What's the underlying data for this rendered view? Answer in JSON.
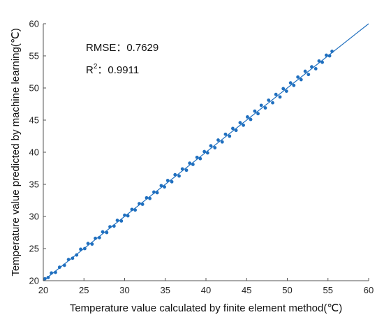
{
  "chart_data": {
    "type": "scatter",
    "title": "",
    "xlabel": "Temperature value calculated by finite element method(℃)",
    "ylabel": "Temperature value predicted by machine learning(℃)",
    "xlim": [
      20,
      60
    ],
    "ylim": [
      20,
      60
    ],
    "xticks": [
      "20",
      "25",
      "30",
      "35",
      "40",
      "45",
      "50",
      "55",
      "60"
    ],
    "yticks": [
      "20",
      "25",
      "30",
      "35",
      "40",
      "45",
      "50",
      "55",
      "60"
    ],
    "grid": false,
    "legend": "none",
    "point_color": "#1f6fbf",
    "fit_line": {
      "x": [
        20,
        60
      ],
      "y": [
        20,
        60
      ],
      "color": "#1f6fbf"
    },
    "annotations": {
      "rmse": "RMSE：0.7629",
      "r2_prefix": "R",
      "r2_sup": "2",
      "r2_value": "：0.9911"
    },
    "series": [
      {
        "values": [
          [
            20.2,
            20.3
          ],
          [
            20.6,
            20.5
          ],
          [
            21.0,
            21.2
          ],
          [
            21.5,
            21.3
          ],
          [
            22.0,
            22.1
          ],
          [
            22.6,
            22.4
          ],
          [
            23.1,
            23.3
          ],
          [
            23.6,
            23.5
          ],
          [
            24.1,
            24.0
          ],
          [
            24.6,
            24.9
          ],
          [
            25.1,
            25.0
          ],
          [
            25.5,
            25.8
          ],
          [
            26.0,
            25.7
          ],
          [
            26.4,
            26.6
          ],
          [
            26.9,
            26.7
          ],
          [
            27.3,
            27.6
          ],
          [
            27.8,
            27.5
          ],
          [
            28.2,
            28.4
          ],
          [
            28.7,
            28.5
          ],
          [
            29.1,
            29.4
          ],
          [
            29.6,
            29.3
          ],
          [
            30.0,
            30.2
          ],
          [
            30.4,
            30.1
          ],
          [
            30.9,
            31.1
          ],
          [
            31.3,
            31.0
          ],
          [
            31.8,
            32.0
          ],
          [
            32.2,
            31.9
          ],
          [
            32.7,
            32.9
          ],
          [
            33.1,
            32.8
          ],
          [
            33.6,
            33.8
          ],
          [
            34.0,
            33.7
          ],
          [
            34.5,
            34.8
          ],
          [
            34.9,
            34.6
          ],
          [
            35.3,
            35.6
          ],
          [
            35.8,
            35.4
          ],
          [
            36.2,
            36.5
          ],
          [
            36.7,
            36.3
          ],
          [
            37.1,
            37.4
          ],
          [
            37.6,
            37.2
          ],
          [
            38.0,
            38.3
          ],
          [
            38.4,
            38.1
          ],
          [
            38.9,
            39.2
          ],
          [
            39.3,
            39.0
          ],
          [
            39.8,
            40.1
          ],
          [
            40.2,
            39.9
          ],
          [
            40.6,
            41.0
          ],
          [
            41.1,
            40.7
          ],
          [
            41.5,
            41.9
          ],
          [
            42.0,
            41.6
          ],
          [
            42.4,
            42.8
          ],
          [
            42.9,
            42.5
          ],
          [
            43.3,
            43.7
          ],
          [
            43.7,
            43.4
          ],
          [
            44.2,
            44.6
          ],
          [
            44.6,
            44.2
          ],
          [
            45.1,
            45.5
          ],
          [
            45.5,
            45.1
          ],
          [
            46.0,
            46.4
          ],
          [
            46.4,
            46.0
          ],
          [
            46.8,
            47.3
          ],
          [
            47.3,
            46.9
          ],
          [
            47.7,
            48.1
          ],
          [
            48.2,
            47.7
          ],
          [
            48.6,
            49.0
          ],
          [
            49.1,
            48.6
          ],
          [
            49.5,
            49.9
          ],
          [
            49.9,
            49.5
          ],
          [
            50.4,
            50.8
          ],
          [
            50.8,
            50.4
          ],
          [
            51.3,
            51.7
          ],
          [
            51.7,
            51.3
          ],
          [
            52.2,
            52.6
          ],
          [
            52.6,
            52.1
          ],
          [
            53.0,
            53.3
          ],
          [
            53.5,
            53.0
          ],
          [
            53.9,
            54.2
          ],
          [
            54.3,
            54.0
          ],
          [
            54.8,
            55.1
          ],
          [
            55.2,
            55.0
          ],
          [
            55.5,
            55.7
          ]
        ]
      }
    ]
  }
}
